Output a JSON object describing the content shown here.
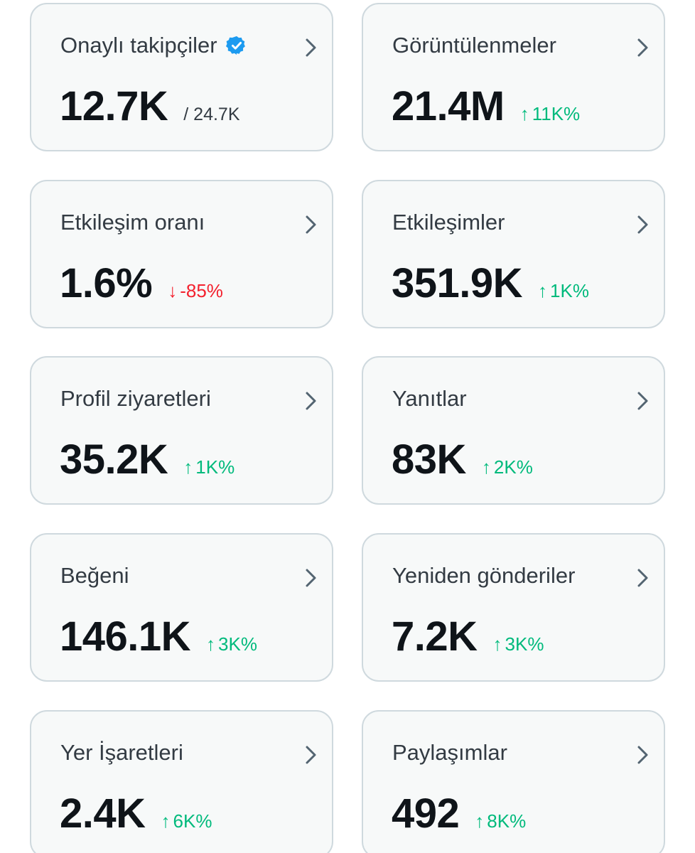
{
  "colors": {
    "card_bg": "#f7f9f9",
    "card_border": "#cfd9de",
    "title_text": "#333b43",
    "value_text": "#0f1419",
    "up": "#00ba7c",
    "down": "#f4212e",
    "verified": "#1d9bf0"
  },
  "cards": [
    {
      "title": "Onaylı takipçiler",
      "icon": "verified-badge-icon",
      "value": "12.7K",
      "secondary": "/ 24.7K"
    },
    {
      "title": "Görüntülenmeler",
      "value": "21.4M",
      "change": {
        "arrow": "↑",
        "text": "11K%",
        "direction": "up"
      }
    },
    {
      "title": "Etkileşim oranı",
      "value": "1.6%",
      "change": {
        "arrow": "↓",
        "text": "-85%",
        "direction": "down"
      }
    },
    {
      "title": "Etkileşimler",
      "value": "351.9K",
      "change": {
        "arrow": "↑",
        "text": "1K%",
        "direction": "up"
      }
    },
    {
      "title": "Profil ziyaretleri",
      "value": "35.2K",
      "change": {
        "arrow": "↑",
        "text": "1K%",
        "direction": "up"
      }
    },
    {
      "title": "Yanıtlar",
      "value": "83K",
      "change": {
        "arrow": "↑",
        "text": "2K%",
        "direction": "up"
      }
    },
    {
      "title": "Beğeni",
      "value": "146.1K",
      "change": {
        "arrow": "↑",
        "text": "3K%",
        "direction": "up"
      }
    },
    {
      "title": "Yeniden gönderiler",
      "value": "7.2K",
      "change": {
        "arrow": "↑",
        "text": "3K%",
        "direction": "up"
      }
    },
    {
      "title": "Yer İşaretleri",
      "value": "2.4K",
      "change": {
        "arrow": "↑",
        "text": "6K%",
        "direction": "up"
      }
    },
    {
      "title": "Paylaşımlar",
      "value": "492",
      "change": {
        "arrow": "↑",
        "text": "8K%",
        "direction": "up"
      }
    }
  ]
}
